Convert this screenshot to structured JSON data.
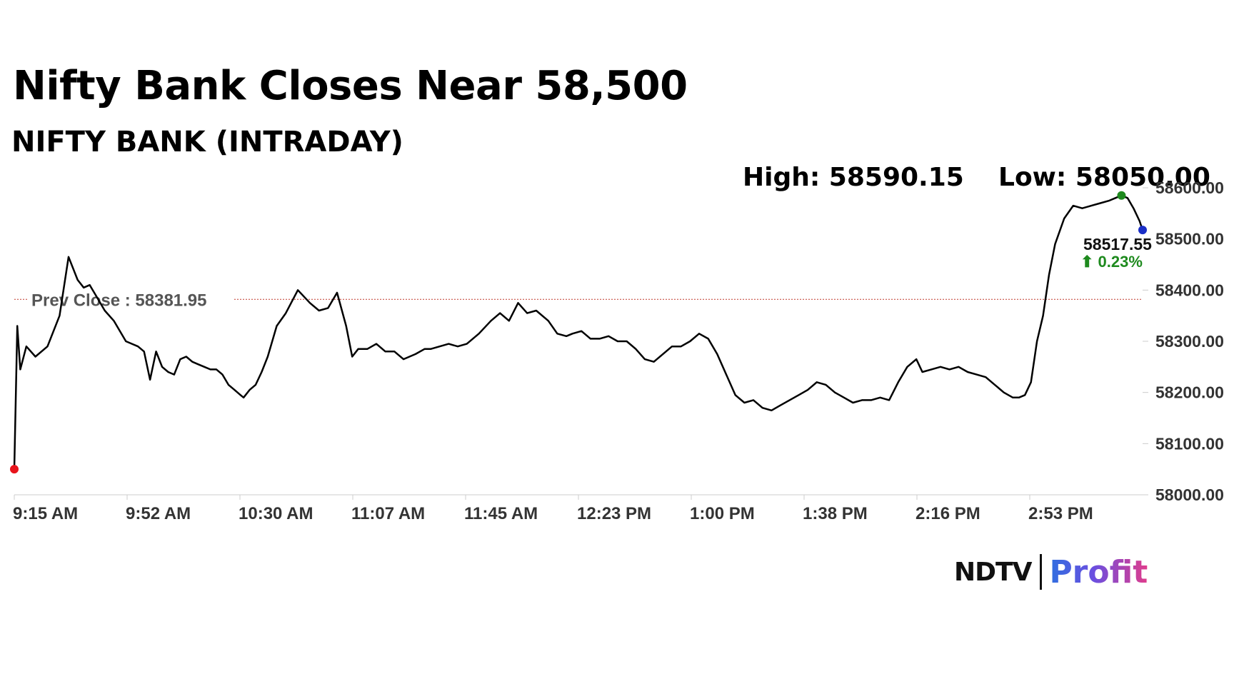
{
  "header": {
    "title": "Nifty Bank Closes Near 58,500",
    "subtitle": "NIFTY BANK (INTRADAY)"
  },
  "stats": {
    "high_label": "High: 58590.15",
    "low_label": "Low: 58050.00"
  },
  "brand": {
    "ndtv": "NDTV",
    "profit": "Profit"
  },
  "colors": {
    "line": "#000000",
    "prev_close_line": "#c0392b",
    "open_dot": "#e8141c",
    "high_dot": "#1e8a1e",
    "last_dot": "#1a2fc7",
    "change_up": "#1e8a1e",
    "axis": "#cccccc"
  },
  "chart_data": {
    "type": "line",
    "title": "NIFTY BANK (INTRADAY)",
    "x_tick_labels": [
      "9:15 AM",
      "9:52 AM",
      "10:30 AM",
      "11:07 AM",
      "11:45 AM",
      "12:23 PM",
      "1:00 PM",
      "1:38 PM",
      "2:16 PM",
      "2:53 PM"
    ],
    "y_tick_labels": [
      "58000.00",
      "58100.00",
      "58200.00",
      "58300.00",
      "58400.00",
      "58500.00",
      "58600.00"
    ],
    "ylim": [
      58000,
      58600
    ],
    "prev_close": 58381.95,
    "prev_close_label": "Prev Close : 58381.95",
    "high": 58590.15,
    "low": 58050.0,
    "last": 58517.55,
    "last_label": "58517.55",
    "change_label": "⬆ 0.23%",
    "series": [
      {
        "x": [
          "9:15",
          "9:16",
          "9:17",
          "9:19",
          "9:22",
          "9:26",
          "9:30",
          "9:33",
          "9:36",
          "9:38",
          "9:40",
          "9:42",
          "9:45",
          "9:48",
          "9:52",
          "9:54",
          "9:56",
          "9:58",
          "10:00",
          "10:02",
          "10:04",
          "10:06",
          "10:08",
          "10:10",
          "10:12",
          "10:14",
          "10:16",
          "10:18",
          "10:20",
          "10:22",
          "10:24",
          "10:26",
          "10:28",
          "10:30",
          "10:31",
          "10:33",
          "10:35",
          "10:37",
          "10:39",
          "10:42",
          "10:45",
          "10:49",
          "10:53",
          "10:56",
          "10:59",
          "11:02",
          "11:05",
          "11:07",
          "11:09",
          "11:12",
          "11:15",
          "11:18",
          "11:21",
          "11:24",
          "11:28",
          "11:31",
          "11:33",
          "11:36",
          "11:39",
          "11:42",
          "11:45",
          "11:49",
          "11:53",
          "11:56",
          "11:59",
          "12:02",
          "12:05",
          "12:08",
          "12:12",
          "12:15",
          "12:18",
          "12:20",
          "12:23",
          "12:26",
          "12:29",
          "12:32",
          "12:35",
          "12:38",
          "12:41",
          "12:44",
          "12:47",
          "12:50",
          "12:53",
          "12:56",
          "12:59",
          "1:02",
          "1:05",
          "1:08",
          "1:11",
          "1:14",
          "1:17",
          "1:20",
          "1:23",
          "1:26",
          "1:29",
          "1:32",
          "1:35",
          "1:38",
          "1:41",
          "1:44",
          "1:47",
          "1:50",
          "1:53",
          "1:56",
          "1:59",
          "2:02",
          "2:05",
          "2:08",
          "2:11",
          "2:14",
          "2:16",
          "2:19",
          "2:22",
          "2:25",
          "2:28",
          "2:31",
          "2:34",
          "2:37",
          "2:40",
          "2:43",
          "2:46",
          "2:48",
          "2:50",
          "2:52",
          "2:54",
          "2:56",
          "2:58",
          "3:00",
          "3:03",
          "3:06",
          "3:09",
          "3:12",
          "3:15",
          "3:18",
          "3:20",
          "3:22",
          "3:24",
          "3:26",
          "3:28",
          "3:29"
        ],
        "values": [
          58050,
          58330,
          58245,
          58290,
          58270,
          58290,
          58350,
          58465,
          58420,
          58405,
          58410,
          58390,
          58360,
          58340,
          58300,
          58295,
          58290,
          58280,
          58225,
          58280,
          58250,
          58240,
          58235,
          58265,
          58270,
          58260,
          58255,
          58250,
          58245,
          58245,
          58235,
          58215,
          58205,
          58195,
          58190,
          58205,
          58215,
          58240,
          58270,
          58330,
          58355,
          58400,
          58375,
          58360,
          58365,
          58395,
          58330,
          58270,
          58285,
          58285,
          58295,
          58280,
          58280,
          58265,
          58275,
          58285,
          58285,
          58290,
          58295,
          58290,
          58295,
          58315,
          58340,
          58355,
          58340,
          58375,
          58355,
          58360,
          58340,
          58315,
          58310,
          58315,
          58320,
          58305,
          58305,
          58310,
          58300,
          58300,
          58285,
          58265,
          58260,
          58275,
          58290,
          58290,
          58300,
          58315,
          58305,
          58275,
          58235,
          58195,
          58180,
          58185,
          58170,
          58165,
          58175,
          58185,
          58195,
          58205,
          58220,
          58215,
          58200,
          58190,
          58180,
          58185,
          58185,
          58190,
          58185,
          58220,
          58250,
          58265,
          58240,
          58245,
          58250,
          58245,
          58250,
          58240,
          58235,
          58230,
          58215,
          58200,
          58190,
          58190,
          58195,
          58220,
          58300,
          58350,
          58430,
          58490,
          58540,
          58565,
          58560,
          58565,
          58570,
          58575,
          58580,
          58585,
          58580,
          58560,
          58535,
          58517.55
        ]
      }
    ],
    "grid": false,
    "legend": "none"
  }
}
